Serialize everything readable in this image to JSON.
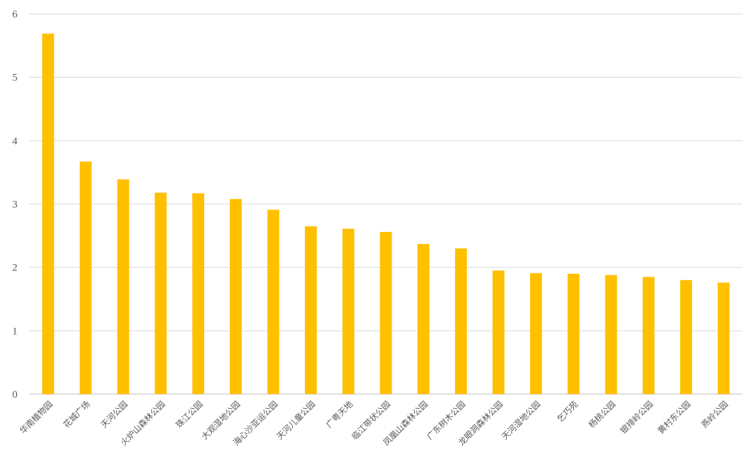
{
  "chart_data": {
    "type": "bar",
    "title": "",
    "xlabel": "",
    "ylabel": "",
    "ylim": [
      0,
      6
    ],
    "yticks": [
      0,
      1,
      2,
      3,
      4,
      5,
      6
    ],
    "grid": true,
    "legend": "none",
    "bar_color": "#FFC000",
    "categories": [
      "华南植物园",
      "花城广场",
      "天河公园",
      "火炉山森林公园",
      "珠江公园",
      "大观湿地公园",
      "海心沙亚运公园",
      "天河儿童公园",
      "广粤天地",
      "临江带状公园",
      "凤凰山森林公园",
      "广东树木公园",
      "龙眼洞森林公园",
      "天河湿地公园",
      "乞巧苑",
      "杨桃公园",
      "银排岭公园",
      "黄村东公园",
      "燕岭公园"
    ],
    "values": [
      5.69,
      3.67,
      3.39,
      3.18,
      3.17,
      3.08,
      2.91,
      2.65,
      2.61,
      2.56,
      2.37,
      2.3,
      1.95,
      1.91,
      1.9,
      1.88,
      1.85,
      1.8,
      1.76
    ]
  }
}
